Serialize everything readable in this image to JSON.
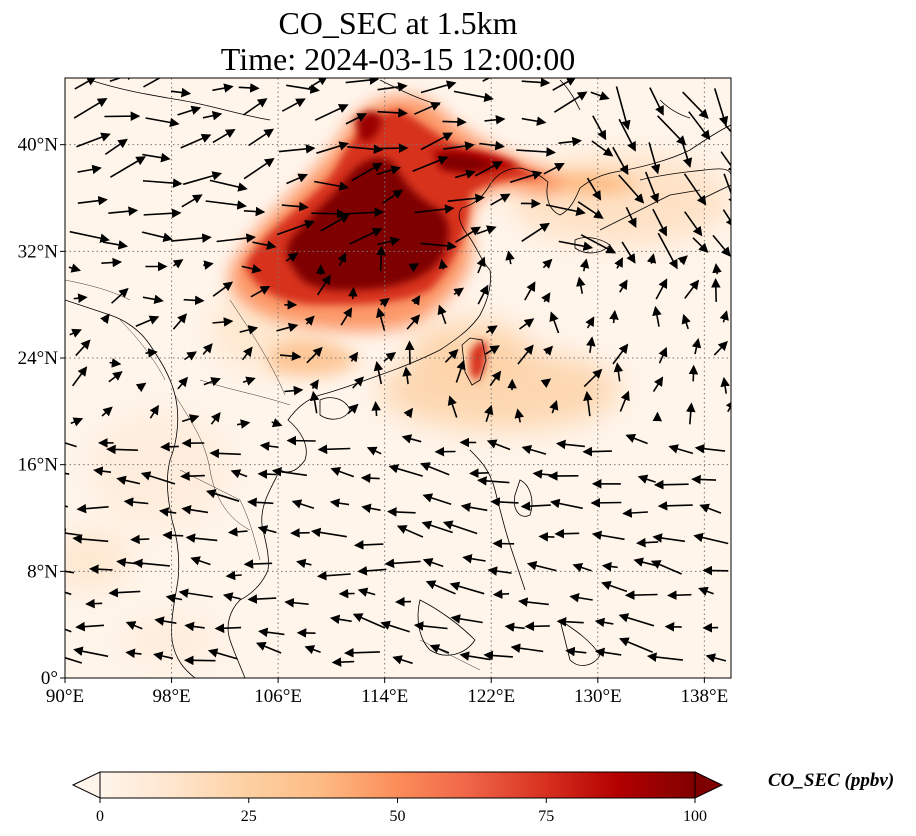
{
  "title": {
    "line1": "CO_SEC at 1.5km",
    "line2": "Time: 2024-03-15 12:00:00"
  },
  "map": {
    "lon_range": [
      90,
      140
    ],
    "lat_range": [
      0,
      45
    ],
    "lon_ticks": [
      "90°E",
      "98°E",
      "106°E",
      "114°E",
      "122°E",
      "130°E",
      "138°E"
    ],
    "lat_ticks": [
      "0°",
      "8°N",
      "16°N",
      "24°N",
      "32°N",
      "40°N"
    ],
    "gridlines": true,
    "field": "CO_SEC",
    "wind_vectors": true
  },
  "colorbar": {
    "label": "CO_SEC (ppbv)",
    "ticks": [
      "0",
      "25",
      "50",
      "75",
      "100"
    ],
    "range": [
      0,
      100
    ],
    "extend": "both",
    "colors": [
      "#fff5eb",
      "#fee6ce",
      "#fdd0a2",
      "#fdae6b",
      "#fd8d3c",
      "#f16913",
      "#d94801",
      "#a63603",
      "#7f0000"
    ]
  }
}
